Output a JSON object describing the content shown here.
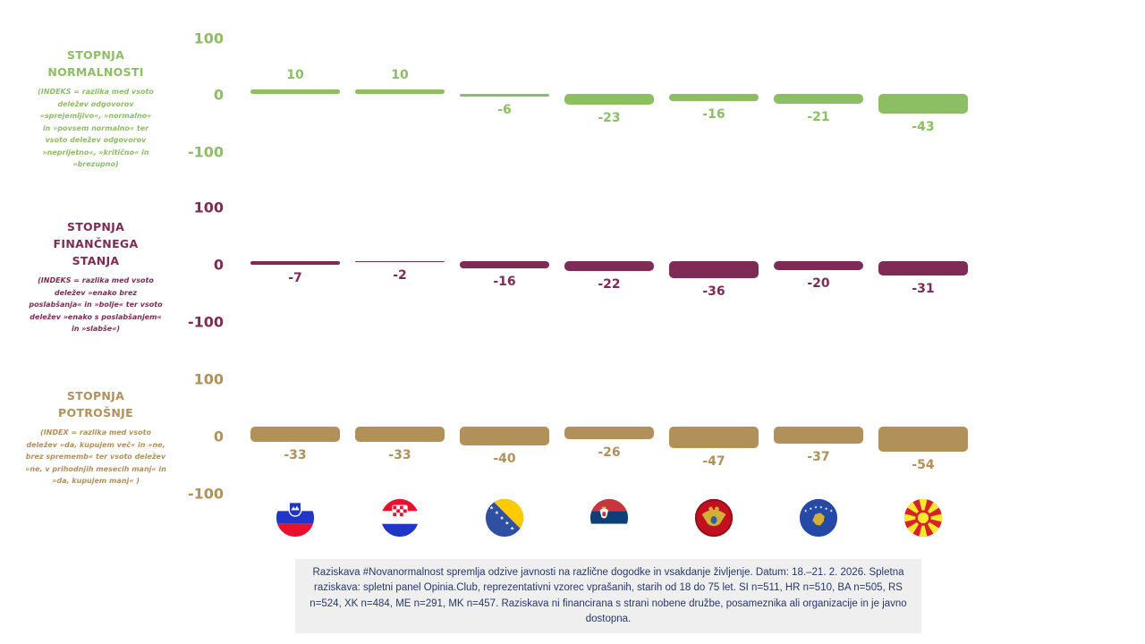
{
  "chart_data": {
    "type": "bar",
    "categories": [
      "Slovenia",
      "Croatia",
      "Bosnia and Herzegovina",
      "Serbia",
      "Montenegro",
      "Kosovo",
      "North Macedonia"
    ],
    "category_flags": [
      "slovenia",
      "croatia",
      "bosnia",
      "serbia",
      "montenegro",
      "kosovo",
      "macedonia"
    ],
    "axis": {
      "ylim": [
        -100,
        100
      ],
      "tick_labels": [
        "100",
        "0",
        "-100"
      ],
      "grid": false
    },
    "series": [
      {
        "name": "STOPNJA NORMALNOSTI",
        "subtitle": "(INDEKS = razlika med vsoto deležev odgovorov »sprejemljivo«, »normalno« in »povsem normalno« ter vsoto deležev odgovorov »neprijetno«, »kritično« in »brezupno)",
        "color": "#8CBE63",
        "values": [
          10,
          10,
          -6,
          -23,
          -16,
          -21,
          -43
        ]
      },
      {
        "name": "STOPNJA FINANČNEGA STANJA",
        "subtitle": "(INDEKS = razlika med vsoto deležev »enako brez poslabšanja« in »bolje« ter vsoto deležev »enako s poslabšanjem« in »slabše«)",
        "color": "#7E2B56",
        "values": [
          -7,
          -2,
          -16,
          -22,
          -36,
          -20,
          -31
        ]
      },
      {
        "name": "STOPNJA POTROŠNJE",
        "subtitle": "(INDEX = razlika med vsoto deležev »da, kupujem več« in »ne, brez sprememb« ter vsoto deležev »ne, v prihodnjih mesecih manj« in »da, kupujem manj« )",
        "color": "#B2905A",
        "values": [
          -33,
          -33,
          -40,
          -26,
          -47,
          -37,
          -54
        ]
      }
    ]
  },
  "footer": {
    "text": "Raziskava #Novanormalnost spremlja odzive javnosti na različne dogodke in vsakdanje življenje. Datum: 18.–21. 2. 2026. Spletna raziskava: spletni panel Opinia.Club, reprezentativni vzorec vprašanih, starih od 18 do 75 let. SI n=511, HR n=510, BA n=505, RS n=524, XK n=484, ME n=291, MK n=457. Raziskava ni financirana s strani nobene družbe, posameznika ali organizacije in je javno dostopna.",
    "bg": "#EFEFEF",
    "text_color": "#24396B"
  }
}
